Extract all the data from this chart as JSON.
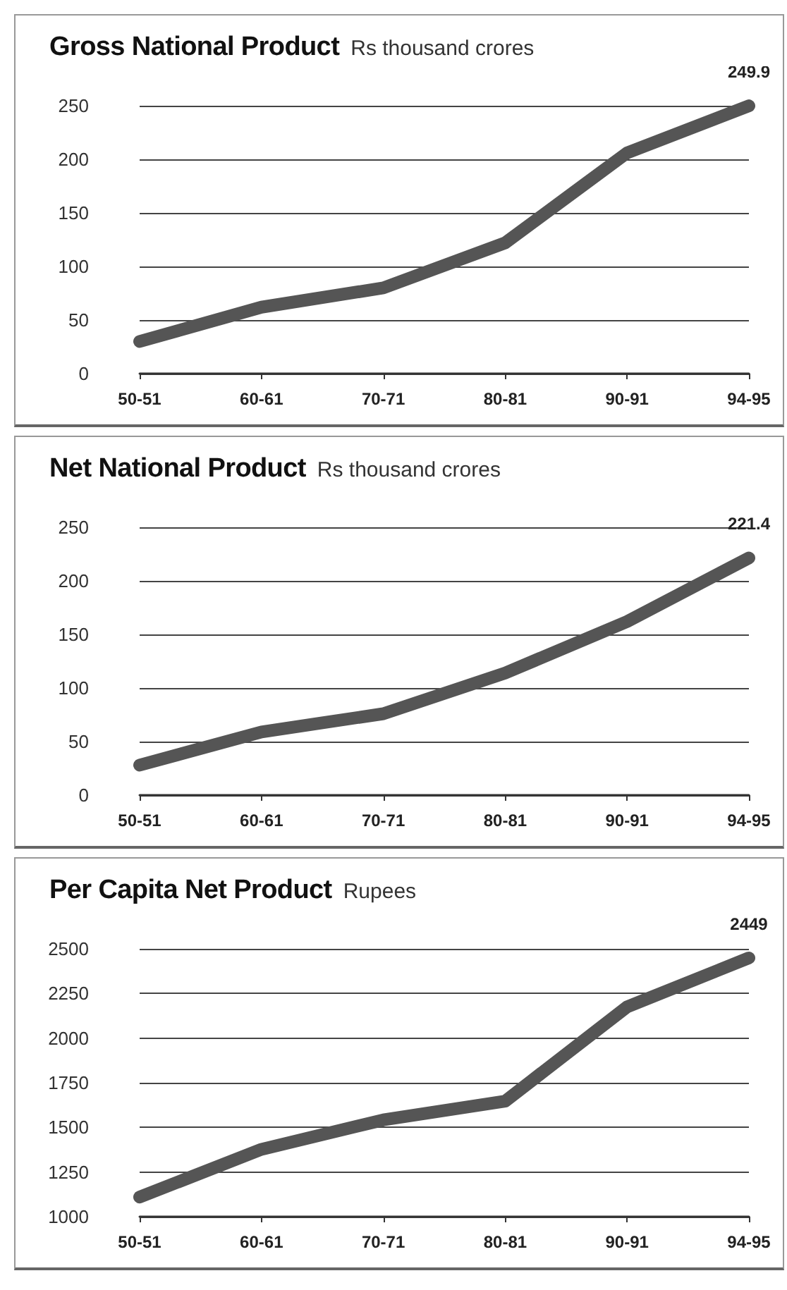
{
  "chart_data": [
    {
      "type": "line",
      "title": "Gross National Product",
      "subtitle": "Rs thousand crores",
      "categories": [
        "50-51",
        "60-61",
        "70-71",
        "80-81",
        "90-91",
        "94-95"
      ],
      "series": [
        {
          "color": "#555555",
          "values": [
            30,
            62,
            80,
            122,
            206,
            249.9
          ],
          "value_labels": [
            null,
            null,
            null,
            null,
            null,
            "249.9"
          ]
        }
      ],
      "ylim": [
        0,
        250
      ],
      "yticks": [
        0,
        50,
        100,
        150,
        200,
        250
      ],
      "grid": "y",
      "marker": "none",
      "line_style": "solid"
    },
    {
      "type": "line",
      "title": "Net National Product",
      "subtitle": "Rs thousand crores",
      "categories": [
        "50-51",
        "60-61",
        "70-71",
        "80-81",
        "90-91",
        "94-95"
      ],
      "series": [
        {
          "color": "#555555",
          "values": [
            28,
            59,
            76,
            114,
            162,
            221.4
          ],
          "value_labels": [
            null,
            null,
            null,
            null,
            null,
            "221.4"
          ]
        }
      ],
      "ylim": [
        0,
        250
      ],
      "yticks": [
        0,
        50,
        100,
        150,
        200,
        250
      ],
      "grid": "y",
      "marker": "none",
      "line_style": "solid"
    },
    {
      "type": "line",
      "title": "Per Capita Net Product",
      "subtitle": "Rupees",
      "categories": [
        "50-51",
        "60-61",
        "70-71",
        "80-81",
        "90-91",
        "94-95"
      ],
      "series": [
        {
          "color": "#555555",
          "values": [
            1110,
            1377,
            1542,
            1647,
            2175,
            2449
          ],
          "value_labels": [
            null,
            null,
            null,
            null,
            null,
            "2449"
          ]
        }
      ],
      "ylim": [
        1000,
        2500
      ],
      "yticks": [
        1000,
        1250,
        1500,
        1750,
        2000,
        2250,
        2500
      ],
      "grid": "y",
      "marker": "none",
      "line_style": "solid"
    }
  ]
}
